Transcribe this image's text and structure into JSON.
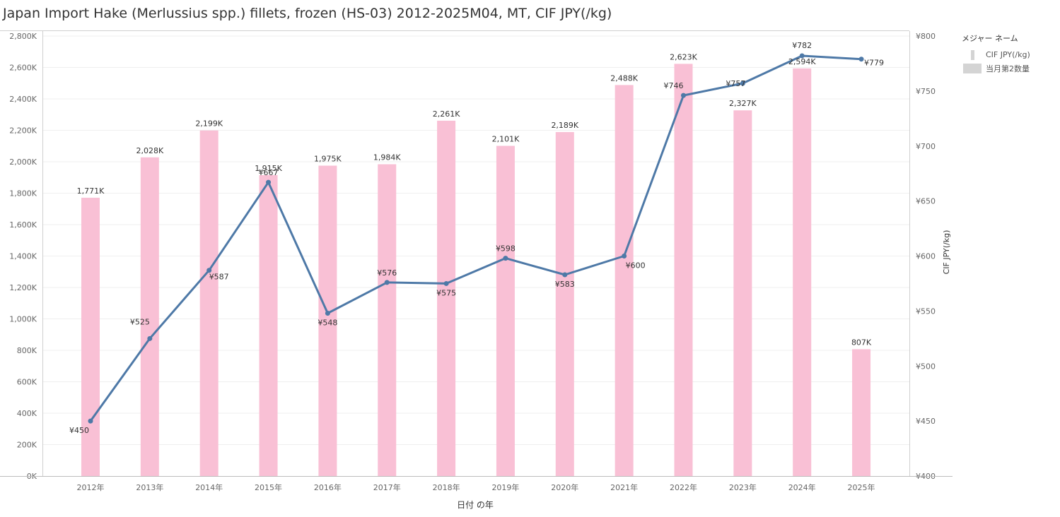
{
  "title": "Japan Import Hake (Merlussius spp.) fillets, frozen (HS-03) 2012-2025M04, MT, CIF JPY(/kg)",
  "legend": {
    "title": "メジャー ネーム",
    "items": [
      {
        "label": "CIF JPY(/kg)",
        "swatch": "line"
      },
      {
        "label": "当月第2数量",
        "swatch": "bar"
      }
    ]
  },
  "chart_data": {
    "type": "bar",
    "categories": [
      "2012年",
      "2013年",
      "2014年",
      "2015年",
      "2016年",
      "2017年",
      "2018年",
      "2019年",
      "2020年",
      "2021年",
      "2022年",
      "2023年",
      "2024年",
      "2025年"
    ],
    "series": [
      {
        "name": "当月第2数量",
        "type": "bar",
        "axis": "left",
        "color": "#f9c0d5",
        "values": [
          1771000,
          2028000,
          2199000,
          1915000,
          1975000,
          1984000,
          2261000,
          2101000,
          2189000,
          2488000,
          2623000,
          2327000,
          2594000,
          807000
        ],
        "labels": [
          "1,771K",
          "2,028K",
          "2,199K",
          "1,915K",
          "1,975K",
          "1,984K",
          "2,261K",
          "2,101K",
          "2,189K",
          "2,488K",
          "2,623K",
          "2,327K",
          "2,594K",
          "807K"
        ]
      },
      {
        "name": "CIF JPY(/kg)",
        "type": "line",
        "axis": "right",
        "color": "#4e79a7",
        "values": [
          450,
          525,
          587,
          667,
          548,
          576,
          575,
          598,
          583,
          600,
          746,
          757,
          782,
          779
        ],
        "labels": [
          "¥450",
          "¥525",
          "¥587",
          "¥667",
          "¥548",
          "¥576",
          "¥575",
          "¥598",
          "¥583",
          "¥600",
          "¥746",
          "¥757",
          "¥782",
          "¥779"
        ]
      }
    ],
    "xlabel": "日付 の年",
    "ylabel": "",
    "y2label": "CIF JPY(/kg)",
    "ylim": [
      0,
      2800000
    ],
    "y2lim": [
      400,
      800
    ],
    "yticks": [
      "0K",
      "200K",
      "400K",
      "600K",
      "800K",
      "1,000K",
      "1,200K",
      "1,400K",
      "1,600K",
      "1,800K",
      "2,000K",
      "2,200K",
      "2,400K",
      "2,600K",
      "2,800K"
    ],
    "y2ticks": [
      "¥400",
      "¥450",
      "¥500",
      "¥550",
      "¥600",
      "¥650",
      "¥700",
      "¥750",
      "¥800"
    ],
    "grid": true,
    "legend_position": "right"
  }
}
